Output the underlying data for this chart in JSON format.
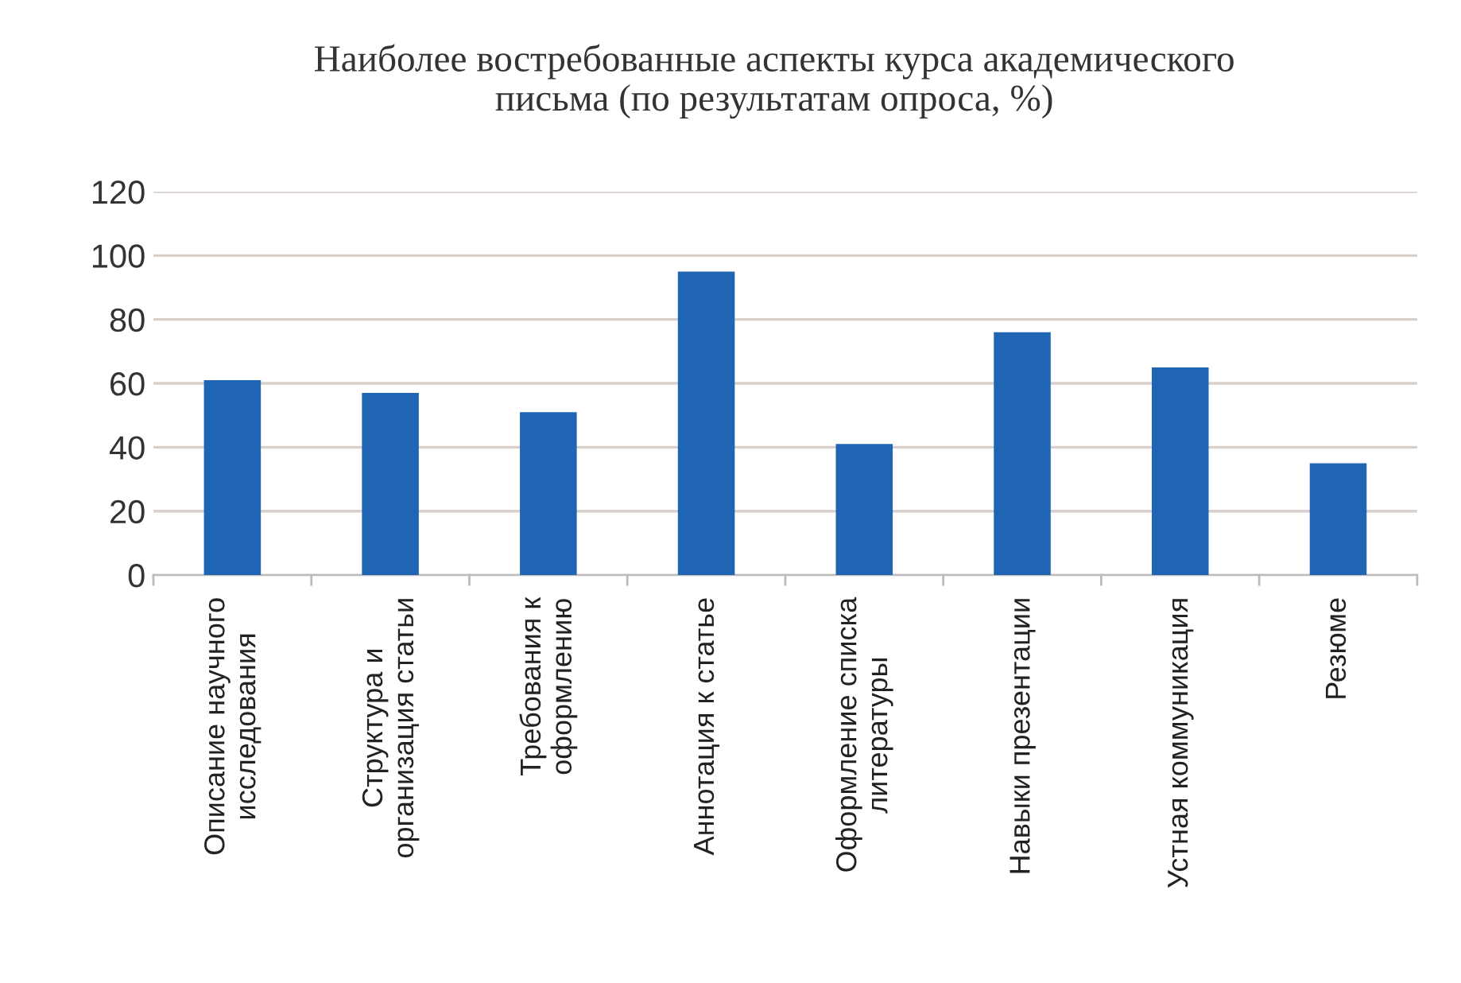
{
  "chart_data": {
    "type": "bar",
    "title": "Наиболее востребованные аспекты курса академического\nписьма (по результатам опроса, %)",
    "categories": [
      "Описание научного\nисследования",
      "Структура и\nорганизация статьи",
      "Требования к\nоформлению",
      "Аннотация к статье",
      "Оформление списка\nлитературы",
      "Навыки презентации",
      "Устная коммуникация",
      "Резюме"
    ],
    "values": [
      61,
      57,
      51,
      95,
      41,
      76,
      65,
      35
    ],
    "color": "#1f65b4",
    "ylim": [
      0,
      120
    ],
    "yticks": [
      0,
      20,
      40,
      60,
      80,
      100,
      120
    ],
    "grid": "y"
  }
}
